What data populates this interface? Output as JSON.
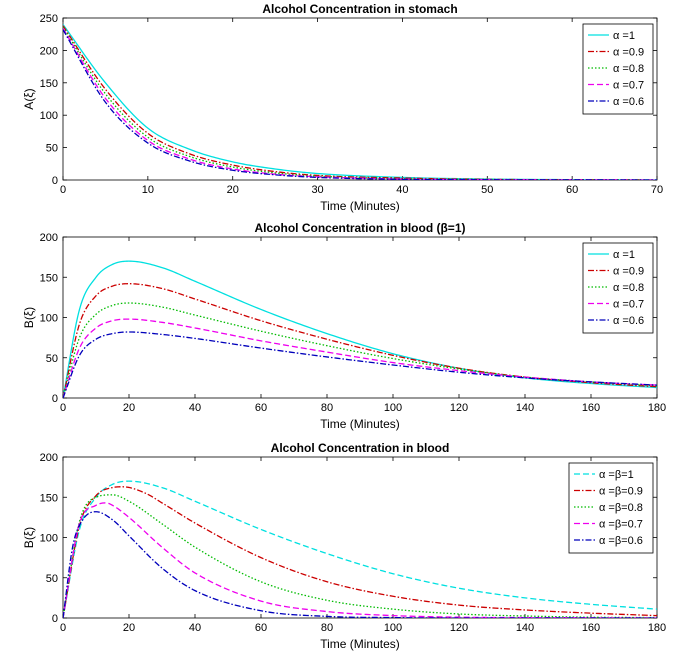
{
  "chart_data": [
    {
      "type": "line",
      "title": "Alcohol Concentration in stomach",
      "xlabel": "Time (Minutes)",
      "ylabel": "A(ξ)",
      "xlim": [
        0,
        70
      ],
      "ylim": [
        0,
        250
      ],
      "xticks": [
        0,
        10,
        20,
        30,
        40,
        50,
        60,
        70
      ],
      "yticks": [
        0,
        50,
        100,
        150,
        200,
        250
      ],
      "legend_position": "top-right",
      "series": [
        {
          "name": "α =1",
          "color": "#00e0e0",
          "dash": "solid",
          "x": [
            0,
            5,
            10,
            15,
            20,
            25,
            30,
            40,
            50,
            70
          ],
          "y": [
            240,
            150,
            80,
            47,
            28,
            17,
            10,
            4,
            1.5,
            0
          ]
        },
        {
          "name": "α =0.9",
          "color": "#cc0000",
          "dash": "dashdot",
          "x": [
            0,
            5,
            10,
            15,
            20,
            25,
            30,
            40,
            50,
            70
          ],
          "y": [
            238,
            140,
            72,
            40,
            23,
            13,
            7,
            3,
            1,
            0
          ]
        },
        {
          "name": "α =0.8",
          "color": "#00bb00",
          "dash": "dotted",
          "x": [
            0,
            5,
            10,
            15,
            20,
            25,
            30,
            40,
            50,
            70
          ],
          "y": [
            236,
            133,
            66,
            36,
            20,
            11,
            6,
            2,
            0.7,
            0
          ]
        },
        {
          "name": "α =0.7",
          "color": "#ee00ee",
          "dash": "dashed",
          "x": [
            0,
            5,
            10,
            15,
            20,
            25,
            30,
            40,
            50,
            70
          ],
          "y": [
            234,
            126,
            61,
            32,
            17,
            9,
            5,
            1.5,
            0.5,
            0
          ]
        },
        {
          "name": "α =0.6",
          "color": "#0000bb",
          "dash": "dashdot",
          "x": [
            0,
            5,
            10,
            15,
            20,
            25,
            30,
            40,
            50,
            70
          ],
          "y": [
            232,
            120,
            57,
            29,
            15,
            8,
            4,
            1,
            0.3,
            0
          ]
        }
      ]
    },
    {
      "type": "line",
      "title": "Alcohol Concentration in blood (β=1)",
      "xlabel": "Time (Minutes)",
      "ylabel": "B(ξ)",
      "xlim": [
        0,
        180
      ],
      "ylim": [
        0,
        200
      ],
      "xticks": [
        0,
        20,
        40,
        60,
        80,
        100,
        120,
        140,
        160,
        180
      ],
      "yticks": [
        0,
        50,
        100,
        150,
        200
      ],
      "legend_position": "top-right",
      "series": [
        {
          "name": "α =1",
          "color": "#00e0e0",
          "dash": "solid",
          "x": [
            0,
            5,
            10,
            15,
            20,
            30,
            40,
            60,
            80,
            100,
            120,
            140,
            160,
            180
          ],
          "y": [
            0,
            110,
            150,
            166,
            170,
            162,
            145,
            110,
            80,
            55,
            37,
            25,
            18,
            13
          ]
        },
        {
          "name": "α =0.9",
          "color": "#cc0000",
          "dash": "dashdot",
          "x": [
            0,
            5,
            10,
            15,
            20,
            30,
            40,
            60,
            80,
            100,
            120,
            140,
            160,
            180
          ],
          "y": [
            0,
            92,
            127,
            139,
            142,
            136,
            123,
            96,
            73,
            53,
            37,
            26,
            19,
            14
          ]
        },
        {
          "name": "α =0.8",
          "color": "#00bb00",
          "dash": "dotted",
          "x": [
            0,
            5,
            10,
            15,
            20,
            30,
            40,
            60,
            80,
            100,
            120,
            140,
            160,
            180
          ],
          "y": [
            0,
            75,
            104,
            115,
            118,
            113,
            103,
            83,
            65,
            49,
            36,
            26,
            20,
            15
          ]
        },
        {
          "name": "α =0.7",
          "color": "#ee00ee",
          "dash": "dashed",
          "x": [
            0,
            5,
            10,
            15,
            20,
            30,
            40,
            60,
            80,
            100,
            120,
            140,
            160,
            180
          ],
          "y": [
            0,
            62,
            87,
            96,
            98,
            94,
            87,
            71,
            57,
            44,
            34,
            26,
            20,
            16
          ]
        },
        {
          "name": "α =0.6",
          "color": "#0000bb",
          "dash": "dashdot",
          "x": [
            0,
            5,
            10,
            15,
            20,
            30,
            40,
            60,
            80,
            100,
            120,
            140,
            160,
            180
          ],
          "y": [
            0,
            53,
            73,
            80,
            82,
            79,
            74,
            62,
            51,
            41,
            32,
            25,
            20,
            16
          ]
        }
      ]
    },
    {
      "type": "line",
      "title": "Alcohol Concentration in blood",
      "xlabel": "Time (Minutes)",
      "ylabel": "B(ξ)",
      "xlim": [
        0,
        180
      ],
      "ylim": [
        0,
        200
      ],
      "xticks": [
        0,
        20,
        40,
        60,
        80,
        100,
        120,
        140,
        160,
        180
      ],
      "yticks": [
        0,
        50,
        100,
        150,
        200
      ],
      "legend_position": "top-right",
      "series": [
        {
          "name": "α =β=1",
          "color": "#00e0e0",
          "dash": "dashed",
          "x": [
            0,
            5,
            10,
            15,
            20,
            30,
            40,
            60,
            80,
            100,
            120,
            140,
            160,
            180
          ],
          "y": [
            0,
            110,
            150,
            166,
            170,
            162,
            145,
            110,
            80,
            55,
            37,
            25,
            17,
            11
          ]
        },
        {
          "name": "α =β=0.9",
          "color": "#cc0000",
          "dash": "dashdot",
          "x": [
            0,
            5,
            10,
            15,
            18,
            25,
            30,
            40,
            60,
            80,
            100,
            120,
            140,
            160,
            180
          ],
          "y": [
            0,
            115,
            152,
            162,
            163,
            155,
            143,
            118,
            75,
            45,
            27,
            16,
            10,
            6,
            3
          ]
        },
        {
          "name": "α =β=0.8",
          "color": "#00bb00",
          "dash": "dotted",
          "x": [
            0,
            5,
            10,
            15,
            20,
            30,
            40,
            60,
            80,
            100,
            120,
            140,
            160,
            180
          ],
          "y": [
            0,
            120,
            150,
            153,
            145,
            117,
            88,
            45,
            22,
            11,
            5,
            2.5,
            1,
            0.5
          ]
        },
        {
          "name": "α =β=0.7",
          "color": "#ee00ee",
          "dash": "dashed",
          "x": [
            0,
            5,
            10,
            13,
            15,
            20,
            30,
            40,
            60,
            80,
            100,
            120,
            140,
            180
          ],
          "y": [
            0,
            118,
            140,
            143,
            140,
            125,
            88,
            56,
            21,
            8,
            3,
            1,
            0.5,
            0
          ]
        },
        {
          "name": "α =β=0.6",
          "color": "#0000bb",
          "dash": "dashdot",
          "x": [
            0,
            3,
            6,
            10,
            15,
            20,
            30,
            40,
            60,
            80,
            100,
            120,
            180
          ],
          "y": [
            0,
            90,
            122,
            132,
            122,
            102,
            62,
            34,
            9,
            2,
            0.5,
            0,
            0
          ]
        }
      ]
    }
  ]
}
